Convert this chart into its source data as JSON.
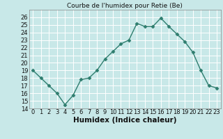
{
  "title": "Courbe de l'humidex pour Retie (Be)",
  "xlabel": "Humidex (Indice chaleur)",
  "x": [
    0,
    1,
    2,
    3,
    4,
    5,
    6,
    7,
    8,
    9,
    10,
    11,
    12,
    13,
    14,
    15,
    16,
    17,
    18,
    19,
    20,
    21,
    22,
    23
  ],
  "y": [
    19.0,
    18.0,
    17.0,
    16.0,
    14.5,
    15.7,
    17.8,
    18.0,
    19.0,
    20.5,
    21.5,
    22.5,
    23.0,
    25.2,
    24.8,
    24.8,
    25.9,
    24.8,
    23.8,
    22.8,
    21.4,
    19.0,
    17.0,
    16.7
  ],
  "line_color": "#2e7d6e",
  "marker": "D",
  "marker_size": 2.5,
  "bg_color": "#c8e8e8",
  "grid_color": "#ffffff",
  "xlim": [
    -0.5,
    23.5
  ],
  "ylim": [
    14,
    27
  ],
  "yticks": [
    14,
    15,
    16,
    17,
    18,
    19,
    20,
    21,
    22,
    23,
    24,
    25,
    26
  ],
  "xticks": [
    0,
    1,
    2,
    3,
    4,
    5,
    6,
    7,
    8,
    9,
    10,
    11,
    12,
    13,
    14,
    15,
    16,
    17,
    18,
    19,
    20,
    21,
    22,
    23
  ],
  "tick_fontsize": 6,
  "xlabel_fontsize": 7.5,
  "title_fontsize": 6.5
}
